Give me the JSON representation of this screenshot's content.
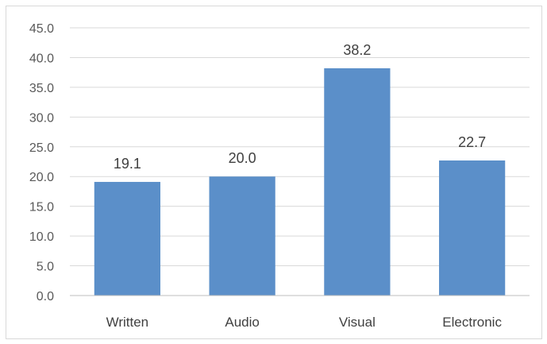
{
  "chart_data": {
    "type": "bar",
    "categories": [
      "Written",
      "Audio",
      "Visual",
      "Electronic"
    ],
    "values": [
      19.1,
      20.0,
      38.2,
      22.7
    ],
    "data_labels": [
      "19.1",
      "20.0",
      "38.2",
      "22.7"
    ],
    "title": "",
    "xlabel": "",
    "ylabel": "",
    "ylim": [
      0,
      45
    ],
    "yticks": [
      "0.0",
      "5.0",
      "10.0",
      "15.0",
      "20.0",
      "25.0",
      "30.0",
      "35.0",
      "40.0",
      "45.0"
    ],
    "ytick_values": [
      0,
      5,
      10,
      15,
      20,
      25,
      30,
      35,
      40,
      45
    ],
    "grid": true,
    "legend": "none",
    "colors": {
      "bar": "#5B8FC9",
      "grid": "#d9d9d9",
      "axis": "#bfbfbf"
    }
  }
}
